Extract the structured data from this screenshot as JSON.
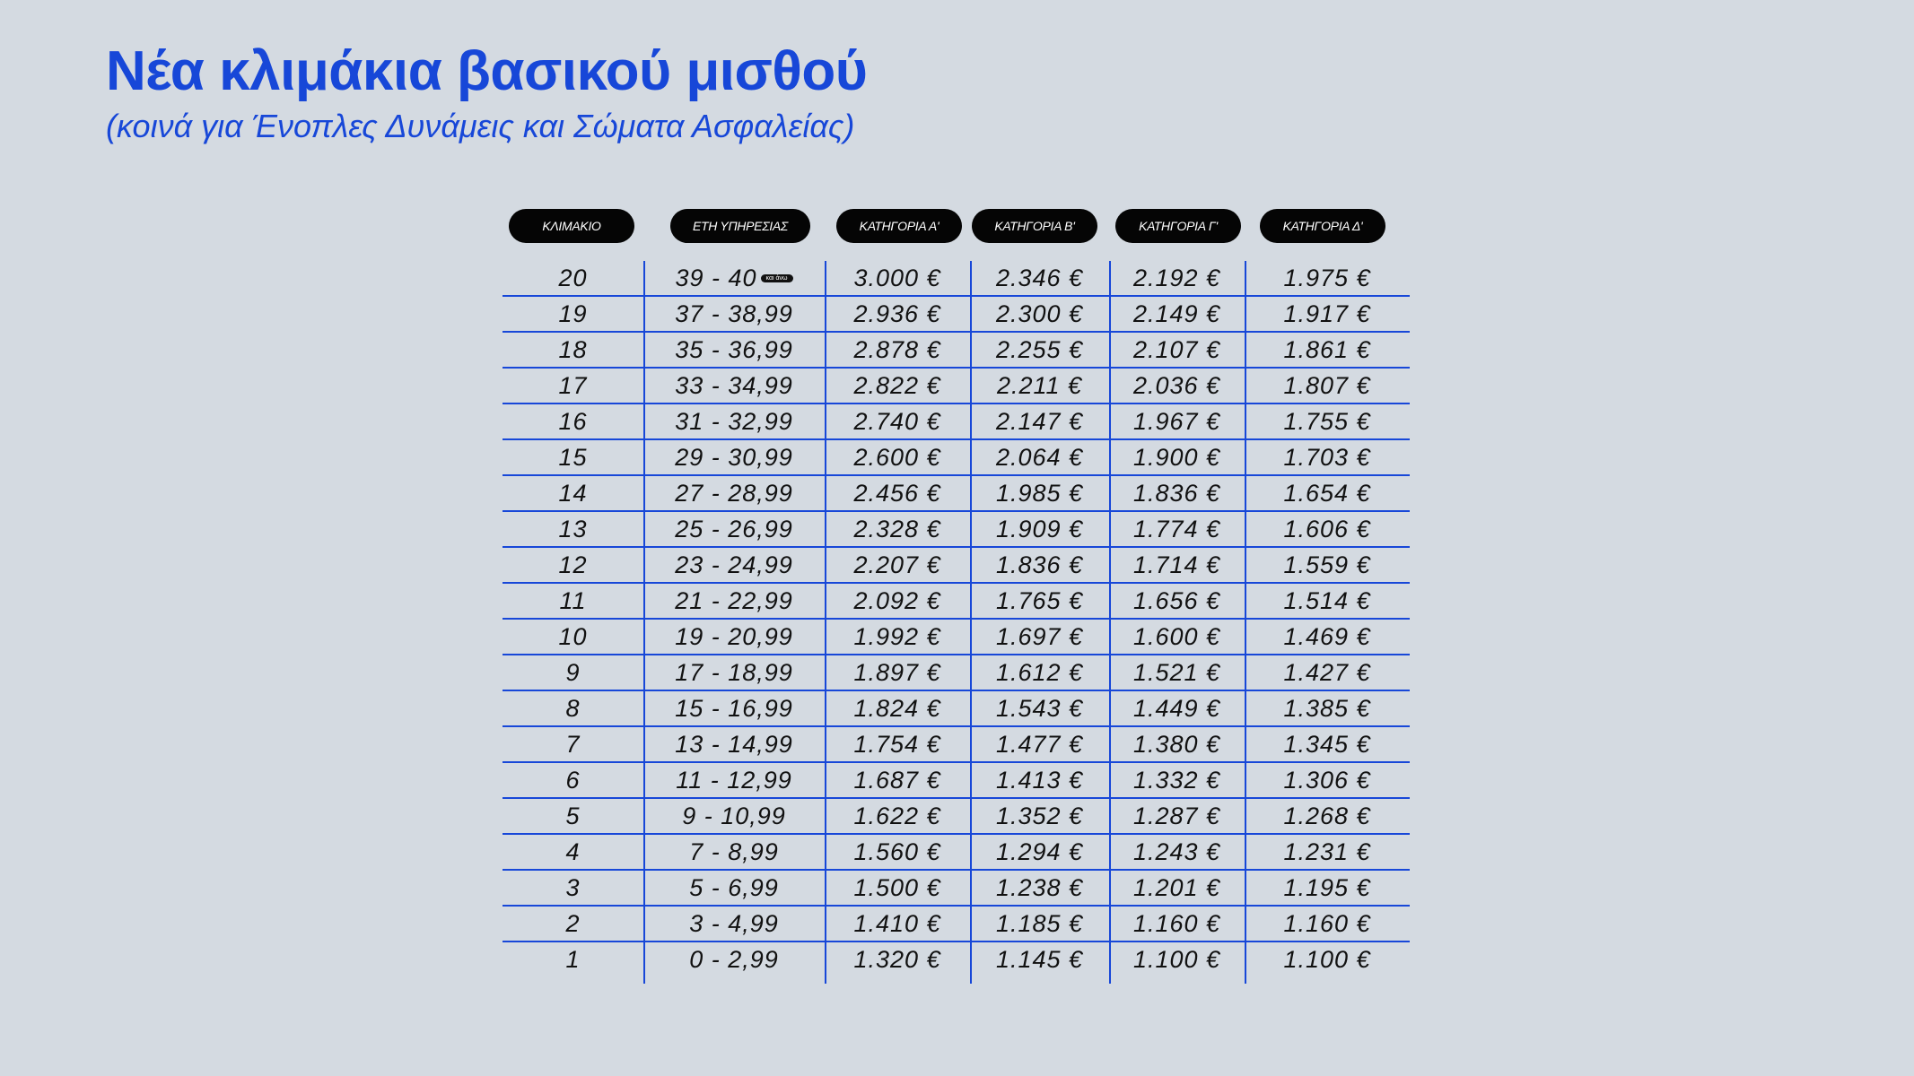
{
  "colors": {
    "accent": "#1747d8",
    "background": "#d4dae1",
    "pill": "#050505"
  },
  "title": "Νέα κλιμάκια βασικού μισθού",
  "subtitle": "(κοινά για Ένοπλες Δυνάμεις και Σώματα Ασφαλείας)",
  "headers": [
    "ΚΛΙΜΑΚΙΟ",
    "ΕΤΗ ΥΠΗΡΕΣΙΑΣ",
    "ΚΑΤΗΓΟΡΙΑ Α'",
    "ΚΑΤΗΓΟΡΙΑ Β'",
    "ΚΑΤΗΓΟΡΙΑ Γ'",
    "ΚΑΤΗΓΟΡΙΑ Δ'"
  ],
  "top_badge": "και άνω",
  "rows": [
    [
      "20",
      "39 - 40",
      "3.000 €",
      "2.346 €",
      "2.192 €",
      "1.975 €"
    ],
    [
      "19",
      "37 - 38,99",
      "2.936 €",
      "2.300 €",
      "2.149 €",
      "1.917 €"
    ],
    [
      "18",
      "35 - 36,99",
      "2.878 €",
      "2.255 €",
      "2.107 €",
      "1.861 €"
    ],
    [
      "17",
      "33 - 34,99",
      "2.822 €",
      "2.211 €",
      "2.036 €",
      "1.807 €"
    ],
    [
      "16",
      "31 - 32,99",
      "2.740 €",
      "2.147 €",
      "1.967 €",
      "1.755 €"
    ],
    [
      "15",
      "29 - 30,99",
      "2.600 €",
      "2.064 €",
      "1.900 €",
      "1.703 €"
    ],
    [
      "14",
      "27 - 28,99",
      "2.456 €",
      "1.985 €",
      "1.836 €",
      "1.654 €"
    ],
    [
      "13",
      "25 - 26,99",
      "2.328 €",
      "1.909 €",
      "1.774 €",
      "1.606 €"
    ],
    [
      "12",
      "23 - 24,99",
      "2.207 €",
      "1.836 €",
      "1.714 €",
      "1.559 €"
    ],
    [
      "11",
      "21 - 22,99",
      "2.092 €",
      "1.765 €",
      "1.656 €",
      "1.514 €"
    ],
    [
      "10",
      "19 - 20,99",
      "1.992 €",
      "1.697 €",
      "1.600 €",
      "1.469 €"
    ],
    [
      "9",
      "17 - 18,99",
      "1.897 €",
      "1.612 €",
      "1.521 €",
      "1.427 €"
    ],
    [
      "8",
      "15 - 16,99",
      "1.824 €",
      "1.543 €",
      "1.449 €",
      "1.385 €"
    ],
    [
      "7",
      "13 - 14,99",
      "1.754 €",
      "1.477 €",
      "1.380 €",
      "1.345 €"
    ],
    [
      "6",
      "11 - 12,99",
      "1.687 €",
      "1.413 €",
      "1.332 €",
      "1.306 €"
    ],
    [
      "5",
      "9 - 10,99",
      "1.622 €",
      "1.352 €",
      "1.287 €",
      "1.268 €"
    ],
    [
      "4",
      "7 - 8,99",
      "1.560 €",
      "1.294 €",
      "1.243 €",
      "1.231 €"
    ],
    [
      "3",
      "5 - 6,99",
      "1.500 €",
      "1.238 €",
      "1.201 €",
      "1.195 €"
    ],
    [
      "2",
      "3 - 4,99",
      "1.410 €",
      "1.185 €",
      "1.160 €",
      "1.160 €"
    ],
    [
      "1",
      "0 - 2,99",
      "1.320 €",
      "1.145 €",
      "1.100 €",
      "1.100 €"
    ]
  ]
}
